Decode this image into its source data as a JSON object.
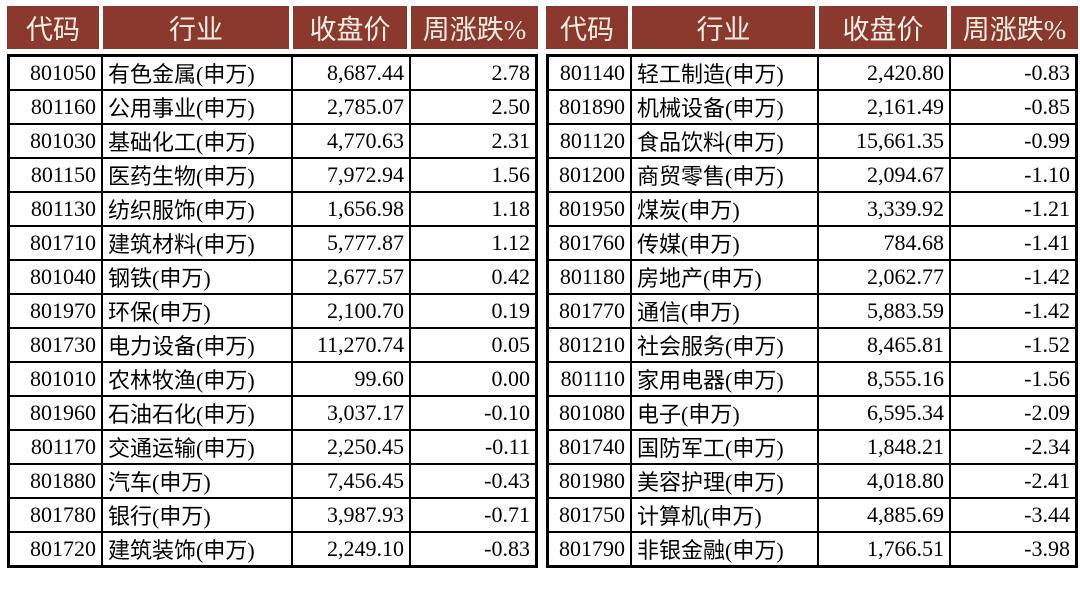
{
  "colors": {
    "header_bg": "#8B392D",
    "header_text": "#F4EFE4",
    "positive_bg": "#F2A29F",
    "zero_bg": "#C4928B",
    "negative_bg": "#D4E2C2",
    "grid": "#000000",
    "page_bg": "#FFFFFF"
  },
  "headers": [
    "代码",
    "行业",
    "收盘价",
    "周涨跌%"
  ],
  "left_rows": [
    {
      "code": "801050",
      "industry": "有色金属(申万)",
      "close": "8,687.44",
      "change": "2.78"
    },
    {
      "code": "801160",
      "industry": "公用事业(申万)",
      "close": "2,785.07",
      "change": "2.50"
    },
    {
      "code": "801030",
      "industry": "基础化工(申万)",
      "close": "4,770.63",
      "change": "2.31"
    },
    {
      "code": "801150",
      "industry": "医药生物(申万)",
      "close": "7,972.94",
      "change": "1.56"
    },
    {
      "code": "801130",
      "industry": "纺织服饰(申万)",
      "close": "1,656.98",
      "change": "1.18"
    },
    {
      "code": "801710",
      "industry": "建筑材料(申万)",
      "close": "5,777.87",
      "change": "1.12"
    },
    {
      "code": "801040",
      "industry": "钢铁(申万)",
      "close": "2,677.57",
      "change": "0.42"
    },
    {
      "code": "801970",
      "industry": "环保(申万)",
      "close": "2,100.70",
      "change": "0.19"
    },
    {
      "code": "801730",
      "industry": "电力设备(申万)",
      "close": "11,270.74",
      "change": "0.05"
    },
    {
      "code": "801010",
      "industry": "农林牧渔(申万)",
      "close": "99.60",
      "change": "0.00"
    },
    {
      "code": "801960",
      "industry": "石油石化(申万)",
      "close": "3,037.17",
      "change": "-0.10"
    },
    {
      "code": "801170",
      "industry": "交通运输(申万)",
      "close": "2,250.45",
      "change": "-0.11"
    },
    {
      "code": "801880",
      "industry": "汽车(申万)",
      "close": "7,456.45",
      "change": "-0.43"
    },
    {
      "code": "801780",
      "industry": "银行(申万)",
      "close": "3,987.93",
      "change": "-0.71"
    },
    {
      "code": "801720",
      "industry": "建筑装饰(申万)",
      "close": "2,249.10",
      "change": "-0.83"
    }
  ],
  "right_rows": [
    {
      "code": "801140",
      "industry": "轻工制造(申万)",
      "close": "2,420.80",
      "change": "-0.83"
    },
    {
      "code": "801890",
      "industry": "机械设备(申万)",
      "close": "2,161.49",
      "change": "-0.85"
    },
    {
      "code": "801120",
      "industry": "食品饮料(申万)",
      "close": "15,661.35",
      "change": "-0.99"
    },
    {
      "code": "801200",
      "industry": "商贸零售(申万)",
      "close": "2,094.67",
      "change": "-1.10"
    },
    {
      "code": "801950",
      "industry": "煤炭(申万)",
      "close": "3,339.92",
      "change": "-1.21"
    },
    {
      "code": "801760",
      "industry": "传媒(申万)",
      "close": "784.68",
      "change": "-1.41"
    },
    {
      "code": "801180",
      "industry": "房地产(申万)",
      "close": "2,062.77",
      "change": "-1.42"
    },
    {
      "code": "801770",
      "industry": "通信(申万)",
      "close": "5,883.59",
      "change": "-1.42"
    },
    {
      "code": "801210",
      "industry": "社会服务(申万)",
      "close": "8,465.81",
      "change": "-1.52"
    },
    {
      "code": "801110",
      "industry": "家用电器(申万)",
      "close": "8,555.16",
      "change": "-1.56"
    },
    {
      "code": "801080",
      "industry": "电子(申万)",
      "close": "6,595.34",
      "change": "-2.09"
    },
    {
      "code": "801740",
      "industry": "国防军工(申万)",
      "close": "1,848.21",
      "change": "-2.34"
    },
    {
      "code": "801980",
      "industry": "美容护理(申万)",
      "close": "4,018.80",
      "change": "-2.41"
    },
    {
      "code": "801750",
      "industry": "计算机(申万)",
      "close": "4,885.69",
      "change": "-3.44"
    },
    {
      "code": "801790",
      "industry": "非银金融(申万)",
      "close": "1,766.51",
      "change": "-3.98"
    }
  ]
}
